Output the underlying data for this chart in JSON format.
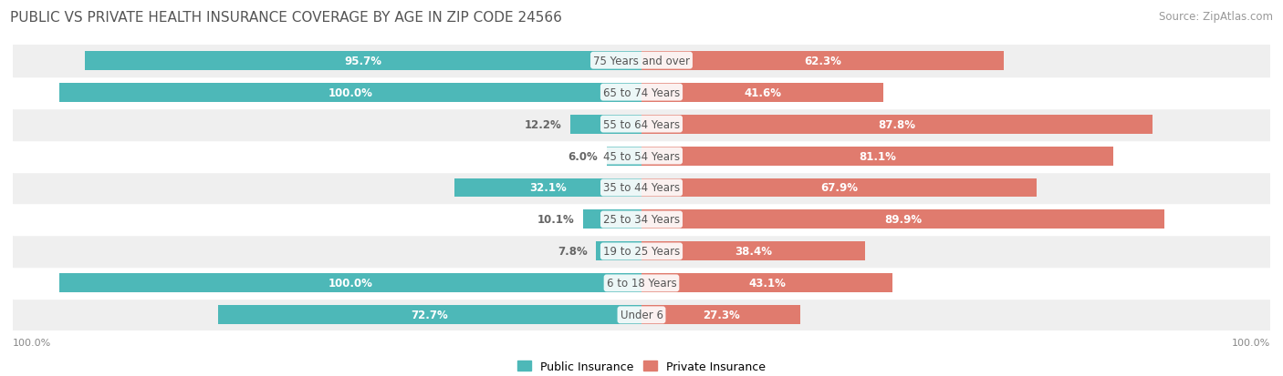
{
  "title": "PUBLIC VS PRIVATE HEALTH INSURANCE COVERAGE BY AGE IN ZIP CODE 24566",
  "source": "Source: ZipAtlas.com",
  "categories": [
    "Under 6",
    "6 to 18 Years",
    "19 to 25 Years",
    "25 to 34 Years",
    "35 to 44 Years",
    "45 to 54 Years",
    "55 to 64 Years",
    "65 to 74 Years",
    "75 Years and over"
  ],
  "public_values": [
    72.7,
    100.0,
    7.8,
    10.1,
    32.1,
    6.0,
    12.2,
    100.0,
    95.7
  ],
  "private_values": [
    27.3,
    43.1,
    38.4,
    89.9,
    67.9,
    81.1,
    87.8,
    41.6,
    62.3
  ],
  "public_color": "#4db8b8",
  "private_color": "#e07b6e",
  "row_bg_color_odd": "#efefef",
  "row_bg_color_even": "#ffffff",
  "label_color_dark": "#666666",
  "center_label_color": "#555555",
  "bar_height": 0.6,
  "title_fontsize": 11,
  "source_fontsize": 8.5,
  "label_fontsize": 8.5,
  "legend_fontsize": 9,
  "axis_label_fontsize": 8,
  "pub_label_threshold": 15,
  "priv_label_threshold": 20
}
